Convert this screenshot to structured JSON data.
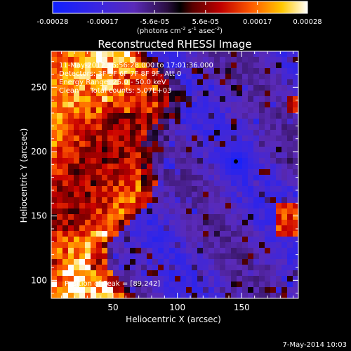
{
  "colorbar": {
    "tick_labels": [
      "-0.00028",
      "-0.00017",
      "-5.6e-05",
      "5.6e-05",
      "0.00017",
      "0.00028"
    ],
    "tick_values": [
      -0.00028,
      -0.00017,
      -5.6e-05,
      5.6e-05,
      0.00017,
      0.00028
    ],
    "range": [
      -0.00028,
      0.00028
    ],
    "unit_label": "(photons cm",
    "unit_exp1": "-2",
    "unit_mid": " s",
    "unit_exp2": "-1",
    "unit_mid2": " asec",
    "unit_exp3": "-2",
    "unit_end": ")"
  },
  "image": {
    "title": "Reconstructed RHESSI Image",
    "annotation_lines": [
      "11-May-2012 16:56:28.000 to 17:01:36.000",
      "Detectors: 3F 5F 6F 7F 8F 9F, Att 0",
      "Energy Range: 25.0 - 50.0 keV",
      "Clean     Total counts: 5.07E+03"
    ],
    "peak_label": "Position of Peak = [89,242]"
  },
  "axes": {
    "xlabel": "Heliocentric X (arcsec)",
    "ylabel": "Heliocentric Y (arcsec)",
    "xlim": [
      2,
      194
    ],
    "ylim": [
      86,
      278
    ],
    "xticks": [
      50,
      100,
      150
    ],
    "yticks": [
      100,
      150,
      200,
      250
    ],
    "xtick_labels": [
      "50",
      "100",
      "150"
    ],
    "ytick_labels": [
      "100",
      "150",
      "200",
      "250"
    ]
  },
  "footer": {
    "timestamp": "7-May-2014 10:03"
  }
}
